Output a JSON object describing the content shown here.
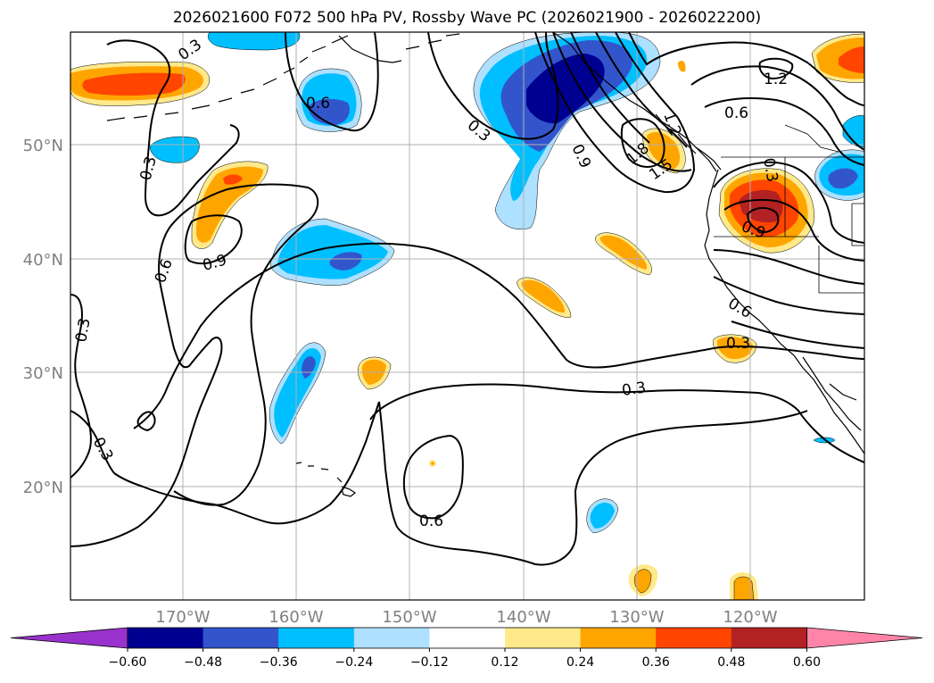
{
  "title": "2026021600 F072 500 hPa PV, Rossby Wave PC (2026021900 - 2026022200)",
  "colors": {
    "axis_label": "#808080",
    "grid": "#b0b0b0",
    "contour": "#000000",
    "coast": "#000000"
  },
  "map": {
    "lat_ticks": [
      "50°N",
      "40°N",
      "30°N",
      "20°N"
    ],
    "lon_ticks": [
      "170°W",
      "160°W",
      "150°W",
      "140°W",
      "130°W",
      "120°W"
    ]
  },
  "contour_labels": [
    {
      "text": "0.3"
    },
    {
      "text": "0.6"
    },
    {
      "text": "0.3"
    },
    {
      "text": "0.3"
    },
    {
      "text": "0.6"
    },
    {
      "text": "0.9"
    },
    {
      "text": "0.3"
    },
    {
      "text": "0.3"
    },
    {
      "text": "0.9"
    },
    {
      "text": "1.2"
    },
    {
      "text": "1.8"
    },
    {
      "text": "1.5"
    },
    {
      "text": "1.2"
    },
    {
      "text": "0.6"
    },
    {
      "text": "0.3"
    },
    {
      "text": "0.9"
    },
    {
      "text": "0.6"
    },
    {
      "text": "0.3"
    },
    {
      "text": "0.3"
    },
    {
      "text": "0.6"
    }
  ],
  "colorbar": {
    "tick_labels": [
      "−0.60",
      "−0.48",
      "−0.36",
      "−0.24",
      "−0.12",
      "0.12",
      "0.24",
      "0.36",
      "0.48",
      "0.60"
    ],
    "colors": [
      "#9932cc",
      "#000090",
      "#3355cc",
      "#00bfff",
      "#aee0ff",
      "#ffffff",
      "#ffe98a",
      "#ffa500",
      "#ff4500",
      "#b22222",
      "#ff85a8"
    ]
  }
}
